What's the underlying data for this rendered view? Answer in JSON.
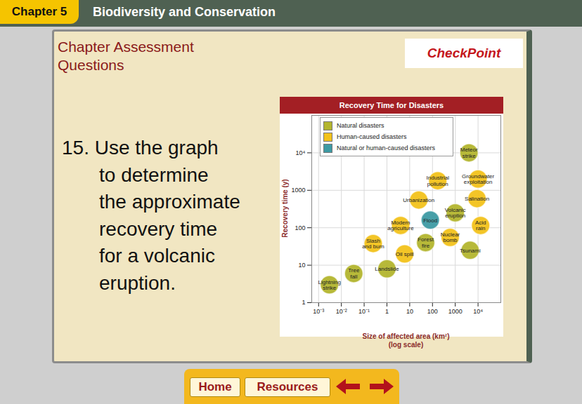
{
  "slide": {
    "chapter": "Chapter 5",
    "unit": "Biodiversity and Conservation",
    "heading": "Chapter Assessment\nQuestions",
    "logo": "CheckPoint",
    "question": [
      "15. Use the graph",
      "to determine",
      "the approximate",
      "recovery time",
      "for a volcanic",
      "eruption."
    ],
    "nav": [
      "Home",
      "Resources"
    ]
  },
  "chart_data": {
    "type": "scatter",
    "title": "Recovery Time for Disasters",
    "xlabel": "Size of affected area (km²)\n(log scale)",
    "ylabel": "Recovery time (y)",
    "log": true,
    "grid": true,
    "legend": "top-left",
    "xlim": [
      0.0005,
      100000
    ],
    "xticks": [
      {
        "value": 0.001,
        "label": "10⁻³"
      },
      {
        "value": 0.01,
        "label": "10⁻²"
      },
      {
        "value": 0.1,
        "label": "10⁻¹"
      },
      1,
      10,
      100,
      1000,
      {
        "value": 10000,
        "label": "10⁴"
      }
    ],
    "ylim": [
      1,
      100000
    ],
    "yticks": [
      1,
      10,
      100,
      1000,
      {
        "value": 10000,
        "label": "10⁴"
      }
    ],
    "series": [
      {
        "name": "Natural disasters",
        "color": "#b3b52e",
        "labels": [
          "Lightning\nstrike",
          "Tree\nfall",
          "Landslide",
          "Forest\nfire",
          "Tsunami",
          "Volcanic\neruption",
          "Meteor\nstrike"
        ],
        "x": [
          0.003,
          0.035,
          1,
          50,
          4500,
          1000,
          4000
        ],
        "y": [
          3,
          6,
          8,
          40,
          25,
          250,
          10000
        ]
      },
      {
        "name": "Human-caused disasters",
        "color": "#f2c21b",
        "labels": [
          "Slash\nand burn",
          "Oil spill",
          "Modern\nagriculture",
          "Urbanization",
          "Industrial\npollution",
          "Groundwater\nexploitation",
          "Salination",
          "Nuclear\nbomb",
          "Acid\nrain"
        ],
        "x": [
          0.25,
          6,
          4,
          25,
          170,
          10000,
          9000,
          600,
          13000
        ],
        "y": [
          38,
          20,
          115,
          550,
          1800,
          2000,
          600,
          55,
          115
        ]
      },
      {
        "name": "Natural or human-caused disasters",
        "color": "#3d9aa3",
        "labels": [
          "Flood"
        ],
        "x": [
          80
        ],
        "y": [
          160
        ]
      }
    ]
  }
}
